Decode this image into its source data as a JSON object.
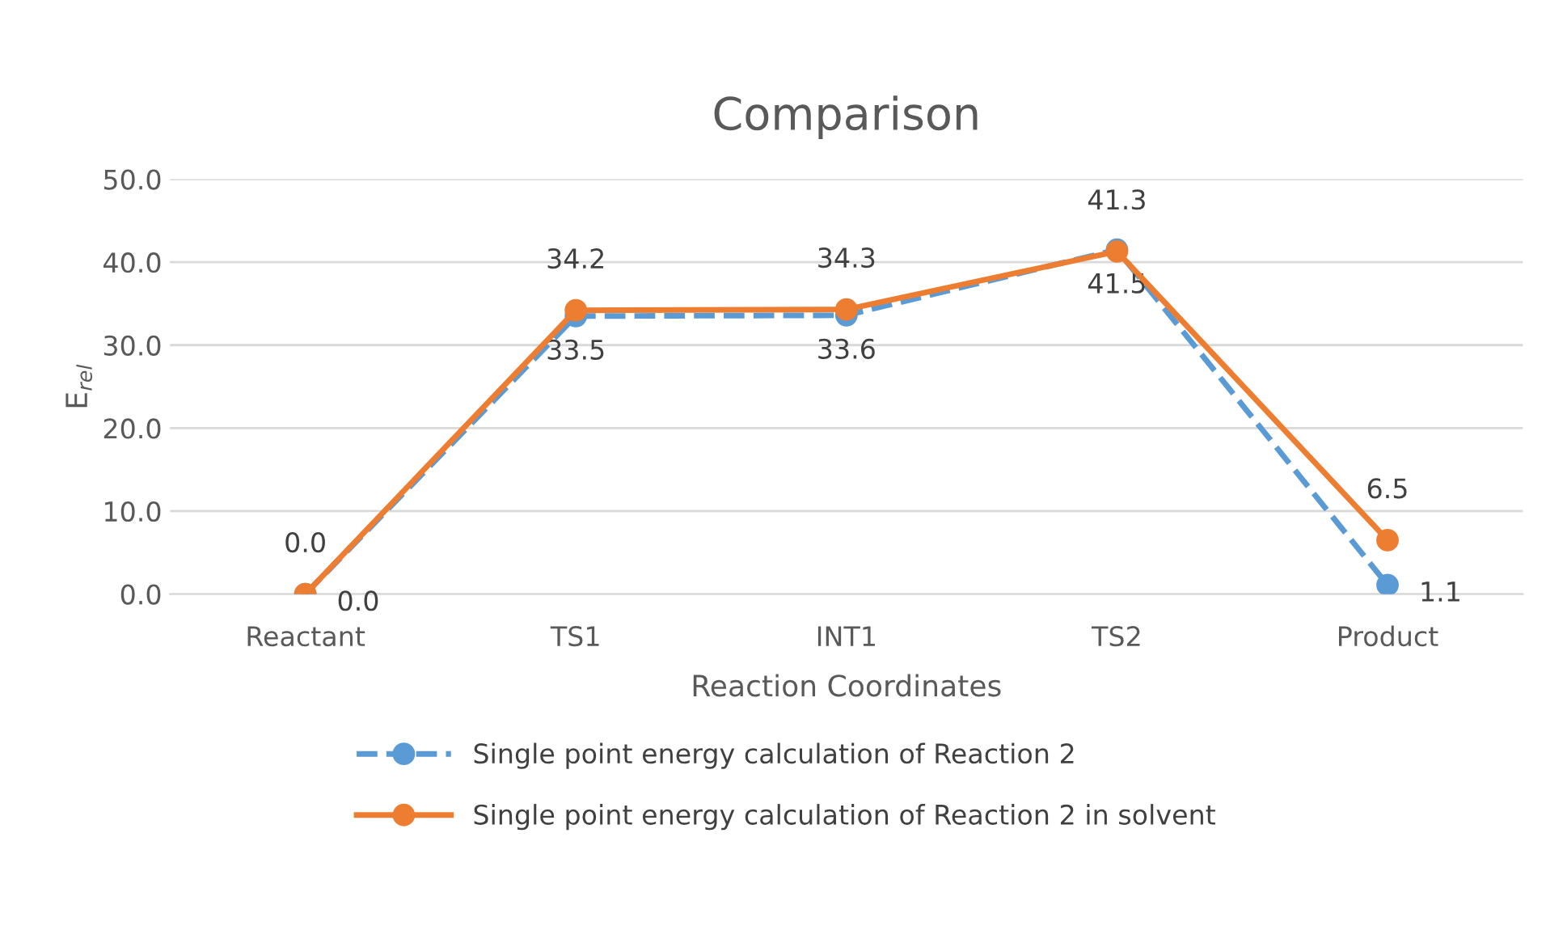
{
  "chart_data": {
    "type": "line",
    "title": "Comparison",
    "xlabel": "Reaction Coordinates",
    "ylabel": "E$_{rel}$",
    "categories": [
      "Reactant",
      "TS1",
      "INT1",
      "TS2",
      "Product"
    ],
    "series": [
      {
        "name": "Single point energy calculation of Reaction 2",
        "color": "#5b9bd5",
        "values": [
          0.0,
          33.5,
          33.6,
          41.5,
          1.1
        ],
        "line_style": "dashed",
        "value_labels": [
          "0.0",
          "33.5",
          "33.6",
          "41.5",
          "1.1"
        ]
      },
      {
        "name": "Single point energy calculation of Reaction 2 in solvent",
        "color": "#ed7d31",
        "values": [
          0.0,
          34.2,
          34.3,
          41.3,
          6.5
        ],
        "line_style": "solid",
        "value_labels": [
          "0.0",
          "34.2",
          "34.3",
          "41.3",
          "6.5"
        ]
      }
    ],
    "ylim": [
      0,
      50
    ],
    "yticks": [
      {
        "value": 0,
        "label": "0.0"
      },
      {
        "value": 10,
        "label": "10.0"
      },
      {
        "value": 20,
        "label": "20.0"
      },
      {
        "value": 30,
        "label": "30.0"
      },
      {
        "value": 40,
        "label": "40.0"
      },
      {
        "value": 50,
        "label": "50.0"
      }
    ],
    "grid": "y",
    "legend": "bottom",
    "marker": "circle"
  }
}
